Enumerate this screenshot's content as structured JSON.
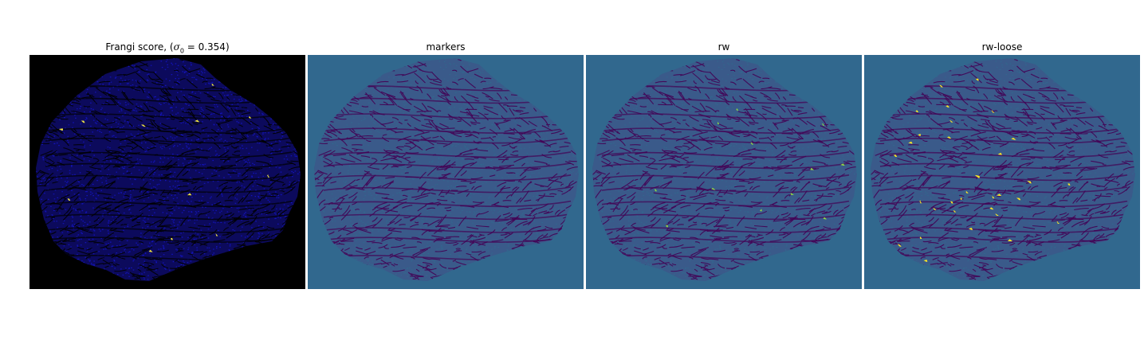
{
  "figure": {
    "panels": [
      {
        "title_prefix": "Frangi score, (",
        "title_sigma": "σ",
        "title_sub": "0",
        "title_suffix": " = 0.354)",
        "colormap": "gnuplot2",
        "background": "#000000",
        "blob_fill": "#0c0a5c",
        "vein": "#000000",
        "speck": "#1515c8",
        "highlight": "#f0e442"
      },
      {
        "title": "markers",
        "colormap": "viridis",
        "background": "#31688e",
        "blob_fill": "#3a5a8a",
        "vein": "#440154",
        "speck": "#31688e",
        "highlight": "#fde725"
      },
      {
        "title": "rw",
        "colormap": "viridis",
        "background": "#31688e",
        "blob_fill": "#3a5a8a",
        "vein": "#440154",
        "speck": "#31688e",
        "highlight": "#90d743"
      },
      {
        "title": "rw-loose",
        "colormap": "viridis",
        "background": "#31688e",
        "blob_fill": "#3a5a8a",
        "vein": "#440154",
        "speck": "#31688e",
        "highlight": "#fde725"
      }
    ]
  }
}
